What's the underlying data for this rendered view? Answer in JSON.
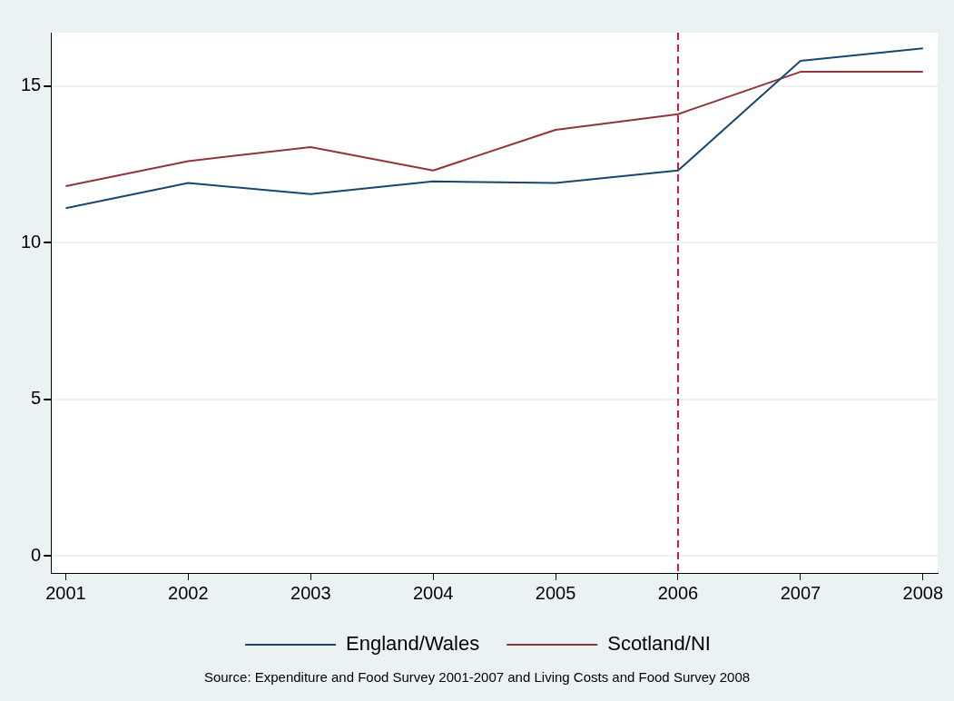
{
  "chart_data": {
    "type": "line",
    "x": [
      2001,
      2002,
      2003,
      2004,
      2005,
      2006,
      2007,
      2008
    ],
    "series": [
      {
        "name": "England/Wales",
        "color": "#1a476f",
        "values": [
          11.1,
          11.9,
          11.55,
          11.95,
          11.9,
          12.3,
          15.8,
          16.2
        ]
      },
      {
        "name": "Scotland/NI",
        "color": "#90353b",
        "values": [
          11.8,
          12.6,
          13.05,
          12.3,
          13.6,
          14.1,
          15.45,
          15.45
        ]
      }
    ],
    "xlim": [
      2000.88,
      2008.12
    ],
    "xticks": [
      2001,
      2002,
      2003,
      2004,
      2005,
      2006,
      2007,
      2008
    ],
    "ylim": [
      -0.55,
      16.7
    ],
    "yticks": [
      0,
      5,
      10,
      15
    ],
    "grid": "y",
    "legend": "bottom",
    "marker": "none",
    "line_style": "solid",
    "ref_lines": [
      {
        "axis": "x",
        "value": 2006,
        "color": "#d01c3c",
        "line_style": "dashed"
      }
    ],
    "annotations": [
      "Source: Expenditure and Food Survey 2001-2007 and Living Costs and Food Survey 2008"
    ]
  }
}
